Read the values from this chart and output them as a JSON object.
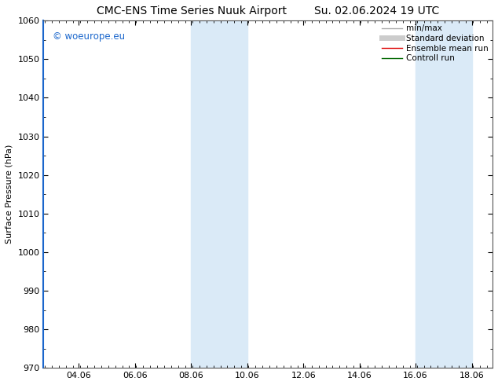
{
  "title_left": "CMC-ENS Time Series Nuuk Airport",
  "title_right": "Su. 02.06.2024 19 UTC",
  "ylabel": "Surface Pressure (hPa)",
  "ylim": [
    970,
    1060
  ],
  "yticks": [
    970,
    980,
    990,
    1000,
    1010,
    1020,
    1030,
    1040,
    1050,
    1060
  ],
  "xtick_labels": [
    "04.06",
    "06.06",
    "08.06",
    "10.06",
    "12.06",
    "14.06",
    "16.06",
    "18.06"
  ],
  "watermark": "© woeurope.eu",
  "watermark_color": "#1a66cc",
  "shaded_color": "#daeaf7",
  "background_color": "#ffffff",
  "legend_entries": [
    {
      "label": "min/max",
      "color": "#aaaaaa",
      "lw": 1.0
    },
    {
      "label": "Standard deviation",
      "color": "#cccccc",
      "lw": 5
    },
    {
      "label": "Ensemble mean run",
      "color": "#dd0000",
      "lw": 1.0
    },
    {
      "label": "Controll run",
      "color": "#006600",
      "lw": 1.0
    }
  ],
  "title_fontsize": 10,
  "axis_fontsize": 8,
  "tick_fontsize": 8,
  "legend_fontsize": 7.5,
  "left_border_color": "#1a66cc",
  "border_color": "#555555"
}
